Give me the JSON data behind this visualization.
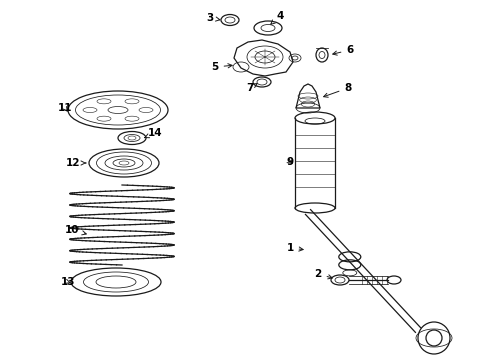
{
  "bg_color": "#ffffff",
  "line_color": "#1a1a1a",
  "label_color": "#000000",
  "fig_w": 4.9,
  "fig_h": 3.6,
  "dpi": 100
}
